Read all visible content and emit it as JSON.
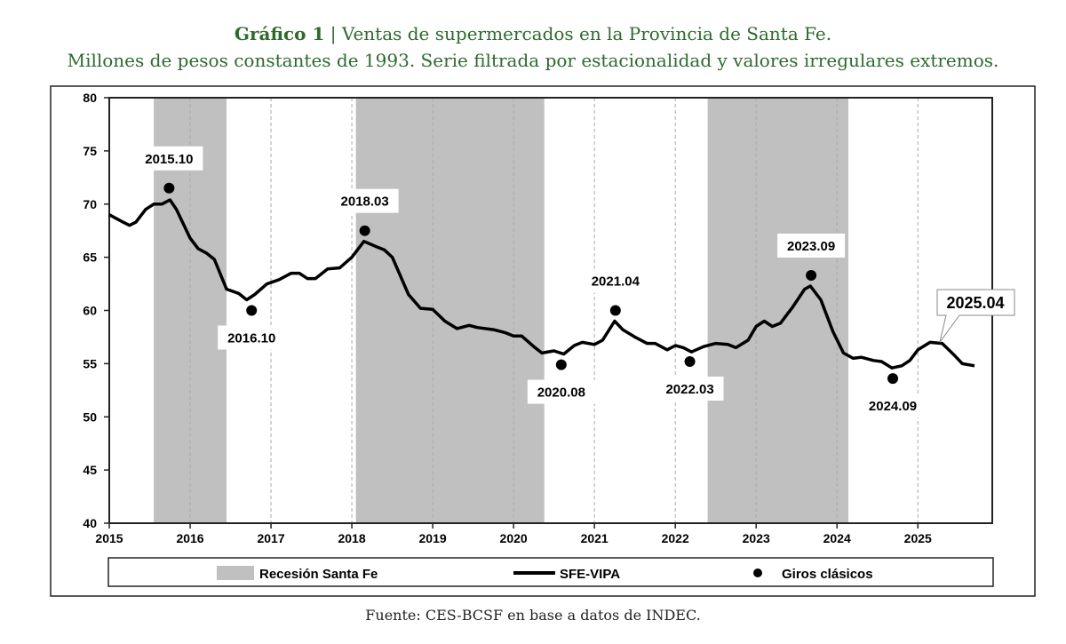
{
  "header": {
    "title_bold": "Gráfico 1",
    "title_rest": " | Ventas de supermercados en la Provincia de Santa Fe.",
    "subtitle": "Millones de pesos constantes de 1993. Serie filtrada por estacionalidad y valores irregulares extremos."
  },
  "source": "Fuente: CES-BCSF en base a datos de INDEC.",
  "chart_data": {
    "type": "line",
    "ylim": [
      40,
      80
    ],
    "xlim": [
      2015,
      2025.92
    ],
    "yticks": [
      40,
      45,
      50,
      55,
      60,
      65,
      70,
      75,
      80
    ],
    "xticks": [
      2015,
      2016,
      2017,
      2018,
      2019,
      2020,
      2021,
      2022,
      2023,
      2024,
      2025
    ],
    "recessions": [
      [
        2015.55,
        2016.45
      ],
      [
        2018.05,
        2020.38
      ],
      [
        2022.4,
        2024.14
      ]
    ],
    "legend": {
      "recession": "Recesión Santa Fe",
      "series": "SFE-VIPA",
      "points": "Giros clásicos"
    },
    "series": {
      "name": "SFE-VIPA",
      "x": [
        2015.0,
        2015.17,
        2015.25,
        2015.33,
        2015.45,
        2015.55,
        2015.65,
        2015.75,
        2015.83,
        2016.0,
        2016.1,
        2016.2,
        2016.3,
        2016.45,
        2016.6,
        2016.7,
        2016.8,
        2016.95,
        2017.1,
        2017.25,
        2017.35,
        2017.45,
        2017.55,
        2017.7,
        2017.85,
        2018.0,
        2018.15,
        2018.3,
        2018.4,
        2018.5,
        2018.7,
        2018.85,
        2019.0,
        2019.15,
        2019.3,
        2019.45,
        2019.55,
        2019.75,
        2019.9,
        2020.0,
        2020.1,
        2020.25,
        2020.35,
        2020.5,
        2020.62,
        2020.75,
        2020.85,
        2021.0,
        2021.1,
        2021.25,
        2021.35,
        2021.5,
        2021.65,
        2021.75,
        2021.9,
        2022.0,
        2022.1,
        2022.2,
        2022.35,
        2022.5,
        2022.65,
        2022.75,
        2022.9,
        2023.0,
        2023.1,
        2023.2,
        2023.3,
        2023.45,
        2023.6,
        2023.67,
        2023.8,
        2023.95,
        2024.08,
        2024.2,
        2024.3,
        2024.45,
        2024.55,
        2024.68,
        2024.8,
        2024.9,
        2025.0,
        2025.15,
        2025.3,
        2025.45,
        2025.55,
        2025.7
      ],
      "y": [
        69.0,
        68.3,
        68.0,
        68.3,
        69.5,
        70.0,
        70.0,
        70.4,
        69.5,
        66.8,
        65.8,
        65.4,
        64.8,
        62.0,
        61.6,
        61.0,
        61.5,
        62.5,
        62.9,
        63.5,
        63.5,
        63.0,
        63.0,
        63.9,
        64.0,
        65.0,
        66.5,
        66.0,
        65.7,
        65.0,
        61.5,
        60.2,
        60.1,
        59.0,
        58.3,
        58.6,
        58.4,
        58.2,
        57.9,
        57.6,
        57.6,
        56.6,
        56.0,
        56.2,
        55.9,
        56.7,
        57.0,
        56.8,
        57.2,
        59.0,
        58.2,
        57.5,
        56.9,
        56.9,
        56.3,
        56.7,
        56.5,
        56.1,
        56.6,
        56.9,
        56.8,
        56.5,
        57.2,
        58.5,
        59.0,
        58.5,
        58.8,
        60.3,
        62.0,
        62.3,
        61.0,
        58.0,
        56.0,
        55.5,
        55.6,
        55.3,
        55.2,
        54.6,
        54.8,
        55.3,
        56.3,
        57.0,
        56.9,
        55.8,
        55.0,
        54.8
      ]
    },
    "turning_points": [
      {
        "label": "2015.10",
        "x": 2015.74,
        "y": 71.5,
        "pos": "above"
      },
      {
        "label": "2016.10",
        "x": 2016.76,
        "y": 60.0,
        "pos": "below"
      },
      {
        "label": "2018.03",
        "x": 2018.16,
        "y": 67.5,
        "pos": "above"
      },
      {
        "label": "2020.08",
        "x": 2020.59,
        "y": 54.9,
        "pos": "below"
      },
      {
        "label": "2021.04",
        "x": 2021.26,
        "y": 60.0,
        "pos": "above"
      },
      {
        "label": "2022.03",
        "x": 2022.18,
        "y": 55.2,
        "pos": "below"
      },
      {
        "label": "2023.09",
        "x": 2023.68,
        "y": 63.3,
        "pos": "above"
      },
      {
        "label": "2024.09",
        "x": 2024.69,
        "y": 53.6,
        "pos": "below"
      }
    ],
    "callout": {
      "label": "2025.04",
      "x": 2025.27,
      "y": 57.0
    }
  }
}
